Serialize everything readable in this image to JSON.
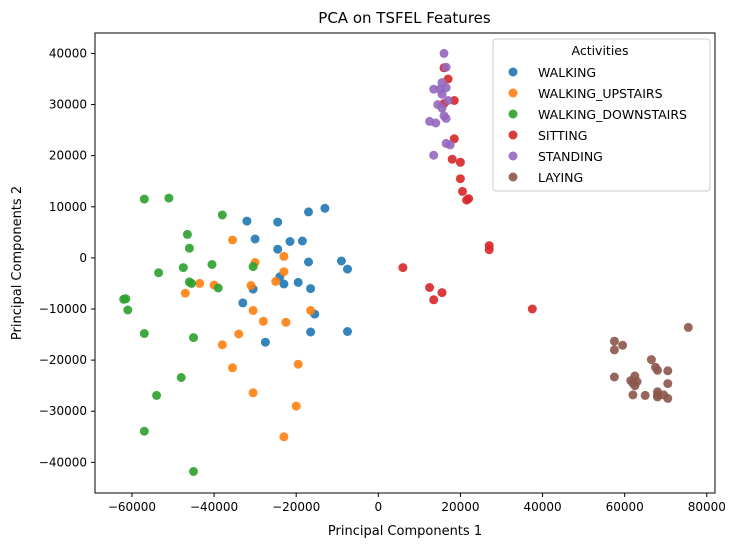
{
  "chart_data": {
    "type": "scatter",
    "title": "PCA on TSFEL Features",
    "xlabel": "Principal Components 1",
    "ylabel": "Principal Components 2",
    "xlim": [
      -69000,
      82000
    ],
    "ylim": [
      -46000,
      44000
    ],
    "xticks": [
      -60000,
      -40000,
      -20000,
      0,
      20000,
      40000,
      60000,
      80000
    ],
    "yticks": [
      -40000,
      -30000,
      -20000,
      -10000,
      0,
      10000,
      20000,
      30000,
      40000
    ],
    "xtick_labels": [
      "−60000",
      "−40000",
      "−20000",
      "0",
      "20000",
      "40000",
      "60000",
      "80000"
    ],
    "ytick_labels": [
      "−40000",
      "−30000",
      "−20000",
      "−10000",
      "0",
      "10000",
      "20000",
      "30000",
      "40000"
    ],
    "grid": false,
    "legend": {
      "title": "Activities",
      "position": "top-right"
    },
    "series": [
      {
        "name": "WALKING",
        "color": "#1f77b4",
        "points": [
          [
            -32000,
            7200
          ],
          [
            -24500,
            7000
          ],
          [
            -17000,
            9000
          ],
          [
            -13000,
            9700
          ],
          [
            -30000,
            3700
          ],
          [
            -21500,
            3200
          ],
          [
            -18500,
            3300
          ],
          [
            -24500,
            1700
          ],
          [
            -17000,
            -800
          ],
          [
            -9000,
            -600
          ],
          [
            -7500,
            -2200
          ],
          [
            -19500,
            -4800
          ],
          [
            -24000,
            -3700
          ],
          [
            -23000,
            -5100
          ],
          [
            -30500,
            -6100
          ],
          [
            -16500,
            -6000
          ],
          [
            -33000,
            -8800
          ],
          [
            -15500,
            -11000
          ],
          [
            -27500,
            -16500
          ],
          [
            -16500,
            -14500
          ],
          [
            -7500,
            -14400
          ]
        ]
      },
      {
        "name": "WALKING_UPSTAIRS",
        "color": "#ff7f0e",
        "points": [
          [
            -35500,
            3500
          ],
          [
            -30000,
            -900
          ],
          [
            -23000,
            300
          ],
          [
            -23000,
            -2700
          ],
          [
            -25000,
            -4600
          ],
          [
            -31000,
            -5400
          ],
          [
            -43500,
            -5000
          ],
          [
            -40000,
            -5300
          ],
          [
            -47000,
            -6900
          ],
          [
            -30500,
            -10300
          ],
          [
            -28000,
            -12400
          ],
          [
            -22500,
            -12600
          ],
          [
            -16500,
            -10300
          ],
          [
            -34000,
            -14900
          ],
          [
            -38000,
            -17000
          ],
          [
            -35500,
            -21500
          ],
          [
            -19500,
            -20800
          ],
          [
            -30500,
            -26400
          ],
          [
            -20000,
            -29000
          ],
          [
            -23000,
            -35000
          ]
        ]
      },
      {
        "name": "WALKING_DOWNSTAIRS",
        "color": "#2ca02c",
        "points": [
          [
            -57000,
            11500
          ],
          [
            -51000,
            11700
          ],
          [
            -38000,
            8400
          ],
          [
            -46500,
            4600
          ],
          [
            -46000,
            1900
          ],
          [
            -40500,
            -1300
          ],
          [
            -30500,
            -1700
          ],
          [
            -47500,
            -1900
          ],
          [
            -53500,
            -2900
          ],
          [
            -46000,
            -4700
          ],
          [
            -45500,
            -5000
          ],
          [
            -39000,
            -5900
          ],
          [
            -62000,
            -8100
          ],
          [
            -61500,
            -8000
          ],
          [
            -61000,
            -10200
          ],
          [
            -57000,
            -14800
          ],
          [
            -45000,
            -15600
          ],
          [
            -48000,
            -23400
          ],
          [
            -54000,
            -26900
          ],
          [
            -57000,
            -33900
          ],
          [
            -45000,
            -41800
          ]
        ]
      },
      {
        "name": "SITTING",
        "color": "#d62728",
        "points": [
          [
            16000,
            37200
          ],
          [
            17000,
            35000
          ],
          [
            18500,
            30800
          ],
          [
            16000,
            30200
          ],
          [
            18500,
            23300
          ],
          [
            18000,
            19300
          ],
          [
            20000,
            18700
          ],
          [
            20000,
            15500
          ],
          [
            20500,
            13000
          ],
          [
            22000,
            11600
          ],
          [
            21500,
            11300
          ],
          [
            27000,
            2400
          ],
          [
            27000,
            1600
          ],
          [
            6000,
            -1900
          ],
          [
            12500,
            -5800
          ],
          [
            15500,
            -6800
          ],
          [
            13500,
            -8200
          ],
          [
            37500,
            -10000
          ]
        ]
      },
      {
        "name": "STANDING",
        "color": "#9467bd",
        "points": [
          [
            16000,
            40000
          ],
          [
            16500,
            37300
          ],
          [
            15500,
            34300
          ],
          [
            16500,
            33300
          ],
          [
            13500,
            33000
          ],
          [
            15000,
            33000
          ],
          [
            15500,
            32000
          ],
          [
            17000,
            30800
          ],
          [
            14500,
            30000
          ],
          [
            15500,
            29300
          ],
          [
            16000,
            27800
          ],
          [
            16500,
            27300
          ],
          [
            12500,
            26700
          ],
          [
            14000,
            26400
          ],
          [
            16500,
            22400
          ],
          [
            17500,
            22100
          ],
          [
            13500,
            20100
          ]
        ]
      },
      {
        "name": "LAYING",
        "color": "#8c564b",
        "points": [
          [
            75500,
            -13600
          ],
          [
            57500,
            -16300
          ],
          [
            59500,
            -17100
          ],
          [
            57500,
            -18000
          ],
          [
            66500,
            -19900
          ],
          [
            67500,
            -21400
          ],
          [
            68000,
            -22000
          ],
          [
            70500,
            -22100
          ],
          [
            62500,
            -23100
          ],
          [
            57500,
            -23300
          ],
          [
            61500,
            -24000
          ],
          [
            62000,
            -24500
          ],
          [
            63000,
            -24200
          ],
          [
            62500,
            -25000
          ],
          [
            70500,
            -24600
          ],
          [
            68000,
            -26200
          ],
          [
            62000,
            -26800
          ],
          [
            65000,
            -26900
          ],
          [
            68000,
            -26800
          ],
          [
            69500,
            -26800
          ],
          [
            70500,
            -27500
          ],
          [
            68000,
            -27200
          ]
        ]
      }
    ]
  }
}
